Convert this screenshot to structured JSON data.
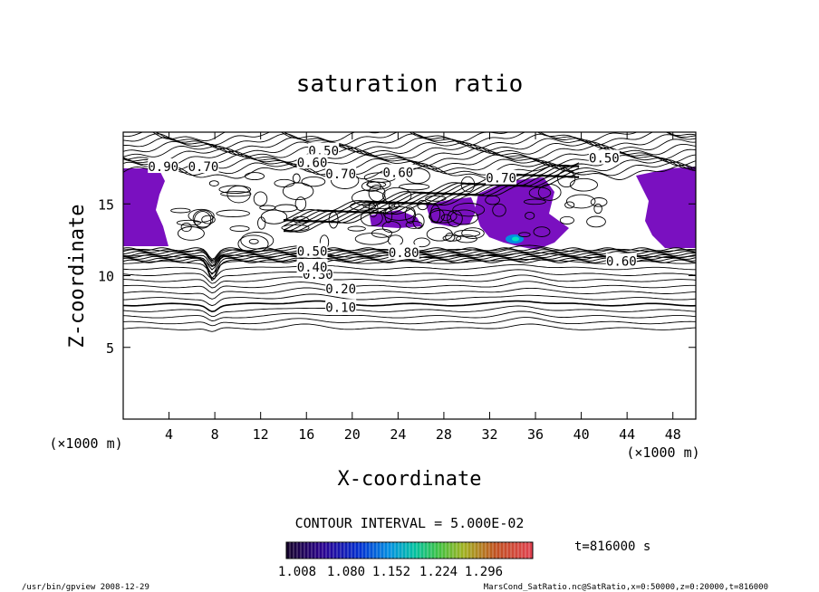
{
  "chart_data": {
    "type": "contour",
    "title": "saturation ratio",
    "xlabel": "X-coordinate",
    "ylabel": "Z-coordinate",
    "x_unit": "(×1000 m)",
    "z_unit": "(×1000 m)",
    "xlim": [
      0,
      50
    ],
    "ylim": [
      0,
      20
    ],
    "x_ticks": [
      4,
      8,
      12,
      16,
      20,
      24,
      28,
      32,
      36,
      40,
      44,
      48
    ],
    "y_ticks": [
      5,
      10,
      15
    ],
    "contour_interval_label": "CONTOUR INTERVAL = 5.000E-02",
    "contour_labels": [
      {
        "text": "0.10",
        "x": 19.0,
        "z": 7.8
      },
      {
        "text": "0.20",
        "x": 19.0,
        "z": 9.1
      },
      {
        "text": "0.30",
        "x": 17.0,
        "z": 10.1
      },
      {
        "text": "0.40",
        "x": 16.5,
        "z": 10.6
      },
      {
        "text": "0.50",
        "x": 16.5,
        "z": 11.7
      },
      {
        "text": "0.50",
        "x": 17.5,
        "z": 18.7
      },
      {
        "text": "0.50",
        "x": 42.0,
        "z": 18.2
      },
      {
        "text": "0.60",
        "x": 16.5,
        "z": 17.9
      },
      {
        "text": "0.60",
        "x": 24.0,
        "z": 17.2
      },
      {
        "text": "0.60",
        "x": 43.5,
        "z": 11.0
      },
      {
        "text": "0.70",
        "x": 19.0,
        "z": 17.1
      },
      {
        "text": "0.70",
        "x": 33.0,
        "z": 16.8
      },
      {
        "text": "0.80",
        "x": 24.5,
        "z": 11.6
      },
      {
        "text": "0.90",
        "x": 3.5,
        "z": 17.6
      },
      {
        "text": "0.70",
        "x": 7.0,
        "z": 17.6
      }
    ],
    "color_scale": {
      "ticks": [
        "1.008",
        "1.080",
        "1.152",
        "1.224",
        "1.296"
      ],
      "colors": [
        "#140028",
        "#2a0090",
        "#0020d0",
        "#0090e0",
        "#00c8b0",
        "#30c040",
        "#a0c020",
        "#c07020",
        "#c02030",
        "#e05060"
      ]
    },
    "time_label": "t=816000 s",
    "shaded_regions_color": "#7a10c0"
  },
  "footer": {
    "left": "/usr/bin/gpview   2008-12-29",
    "right": "MarsCond_SatRatio.nc@SatRatio,x=0:50000,z=0:20000,t=816000"
  }
}
